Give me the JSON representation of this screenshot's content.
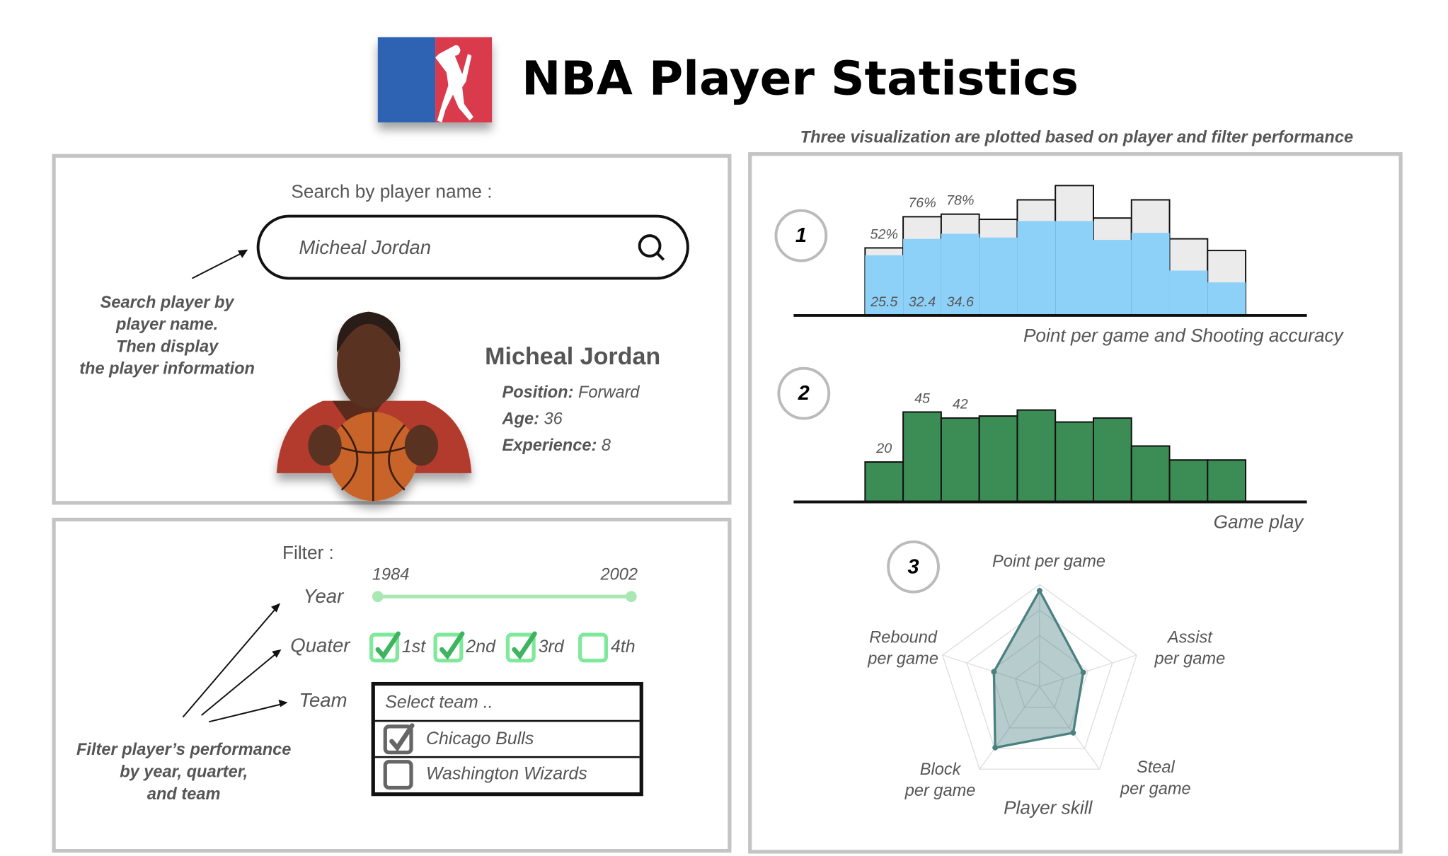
{
  "header": {
    "title": "NBA Player Statistics"
  },
  "search": {
    "label": "Search by player name :",
    "query": "Micheal Jordan",
    "note": [
      "Search player by",
      "player name.",
      "Then display",
      "the player information"
    ]
  },
  "player": {
    "name": "Micheal Jordan",
    "fields": [
      {
        "label": "Position:",
        "value": "Forward"
      },
      {
        "label": "Age:",
        "value": 36
      },
      {
        "label": "Experience:",
        "value": 8
      }
    ]
  },
  "filter": {
    "label": "Filter :",
    "year": {
      "label": "Year",
      "start": 1984,
      "end": 2002
    },
    "quarter": {
      "label": "Quater",
      "options": [
        {
          "label": "1st",
          "checked": true
        },
        {
          "label": "2nd",
          "checked": true
        },
        {
          "label": "3rd",
          "checked": true
        },
        {
          "label": "4th",
          "checked": false
        }
      ]
    },
    "team": {
      "label": "Team",
      "placeholder": "Select team ..",
      "options": [
        {
          "label": "Chicago Bulls",
          "checked": true
        },
        {
          "label": "Washington Wizards",
          "checked": false
        }
      ]
    },
    "note": [
      "Filter player’s performance",
      "by year, quarter,",
      "and team"
    ]
  },
  "visualizations": {
    "subtitle": "Three visualization are plotted based on player and filter performance"
  },
  "chart_data": [
    {
      "type": "bar",
      "marker": 1,
      "overlay": true,
      "xlabel": "Point per game and Shooting accuracy",
      "ylim": [
        0,
        100
      ],
      "y2lim": [
        0,
        55
      ],
      "series": [
        {
          "color": "#ebebeb",
          "values": [
            52,
            76,
            78,
            74,
            89,
            100,
            75,
            89,
            59,
            50
          ],
          "value_labels": [
            "52%",
            "76%",
            "78%",
            null,
            null,
            null,
            null,
            null,
            null,
            null
          ]
        },
        {
          "color": "#8ed1f8",
          "axis": "y2",
          "values": [
            25.5,
            32.4,
            34.6,
            33,
            40,
            40,
            32,
            35,
            19,
            14
          ],
          "value_labels": [
            "25.5",
            "32.4",
            "34.6",
            null,
            null,
            null,
            null,
            null,
            null,
            null
          ]
        }
      ]
    },
    {
      "type": "bar",
      "marker": 2,
      "xlabel": "Game play",
      "ylim": [
        0,
        65
      ],
      "series": [
        {
          "color": "#3c8c55",
          "values": [
            20,
            45,
            42,
            43,
            46,
            40,
            42,
            28,
            21,
            21
          ],
          "value_labels": [
            "20",
            "45",
            "42",
            null,
            null,
            null,
            null,
            null,
            null,
            null
          ]
        }
      ]
    },
    {
      "type": "radar",
      "marker": 3,
      "xlabel": "Player skill",
      "rlim": [
        0,
        1
      ],
      "color": "#4a8080",
      "axes": [
        [
          "Point per game"
        ],
        [
          "Assist",
          "per game"
        ],
        [
          "Steal",
          "per game"
        ],
        [
          "Block",
          "per game"
        ],
        [
          "Rebound",
          "per game"
        ]
      ],
      "values": [
        0.94,
        0.45,
        0.56,
        0.74,
        0.47
      ]
    }
  ]
}
